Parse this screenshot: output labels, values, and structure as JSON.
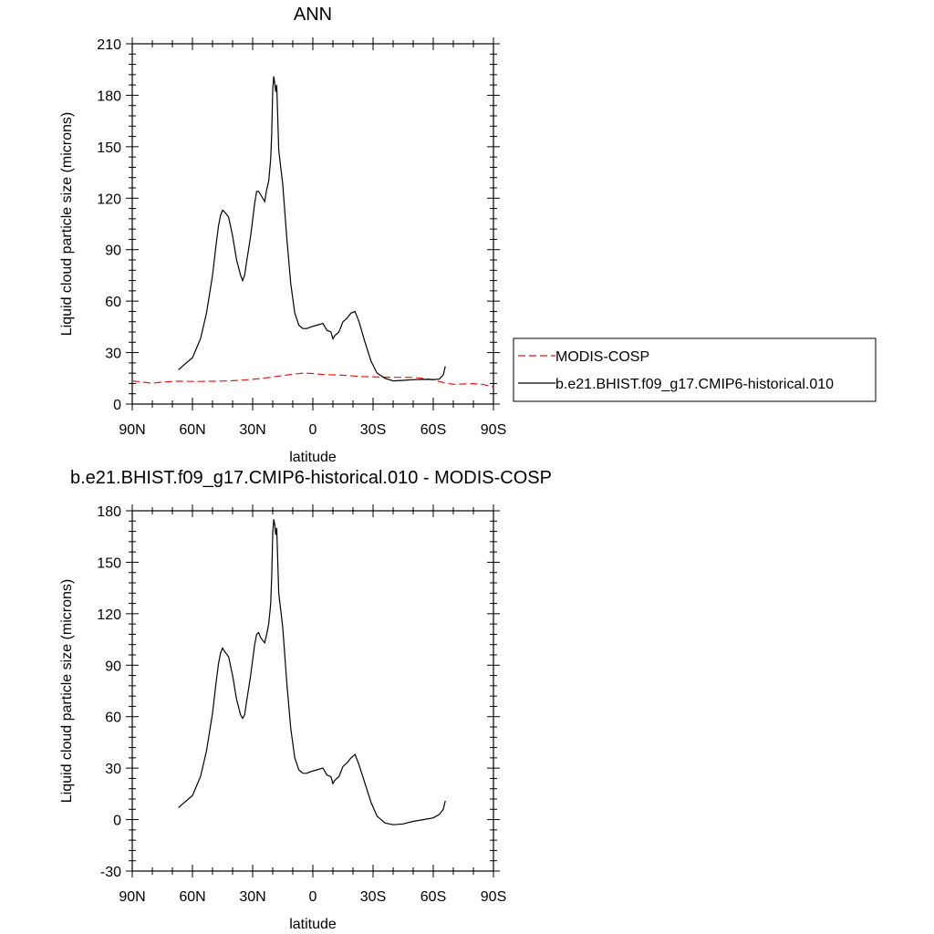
{
  "chart_data": [
    {
      "type": "line",
      "title": "ANN",
      "xlabel": "latitude",
      "ylabel": "Liquid cloud particle size (microns)",
      "xlim": [
        90,
        -90
      ],
      "ylim": [
        0,
        210
      ],
      "yticks": [
        0,
        30,
        60,
        90,
        120,
        150,
        180,
        210
      ],
      "xticks": [
        90,
        60,
        30,
        0,
        -30,
        -60,
        -90
      ],
      "xticklabels": [
        "90N",
        "60N",
        "30N",
        "0",
        "30S",
        "60S",
        "90S"
      ],
      "grid": false,
      "legend": "right",
      "series": [
        {
          "name": "MODIS-COSP",
          "color": "#e41a1c",
          "dash": "dashed",
          "x": [
            90,
            85,
            80,
            75,
            70,
            65,
            60,
            55,
            50,
            45,
            40,
            35,
            30,
            25,
            20,
            15,
            10,
            5,
            0,
            -5,
            -10,
            -15,
            -20,
            -25,
            -30,
            -35,
            -40,
            -45,
            -50,
            -55,
            -60,
            -65,
            -70,
            -75,
            -80,
            -85,
            -90
          ],
          "y": [
            13.5,
            12.8,
            12.2,
            12.8,
            13.2,
            13.3,
            13.2,
            13.2,
            13.3,
            13.4,
            13.6,
            14.0,
            14.4,
            15.0,
            15.8,
            16.6,
            17.4,
            18.0,
            17.8,
            17.2,
            17.0,
            16.8,
            16.4,
            16.0,
            15.9,
            15.7,
            15.6,
            15.6,
            15.5,
            15.0,
            14.2,
            12.5,
            11.5,
            11.7,
            11.9,
            11.4,
            10.0
          ]
        },
        {
          "name": "b.e21.BHIST.f09_g17.CMIP6-historical.010",
          "color": "#000000",
          "dash": "solid",
          "x": [
            67,
            64,
            60,
            56,
            53,
            50,
            48,
            47,
            46,
            45,
            44,
            42,
            40,
            38,
            36,
            35,
            34,
            33,
            31,
            29,
            28,
            27,
            26,
            24,
            23,
            22,
            21,
            20.5,
            20,
            19.5,
            19,
            18.5,
            18,
            17,
            15,
            13,
            11,
            9,
            7,
            5,
            3,
            1,
            -2,
            -5,
            -7,
            -9,
            -10,
            -11,
            -13,
            -15,
            -17,
            -19,
            -21,
            -23,
            -26,
            -29,
            -32,
            -36,
            -40,
            -45,
            -50,
            -55,
            -60,
            -63,
            -65,
            -66
          ],
          "y": [
            20,
            23,
            27,
            38,
            53,
            75,
            95,
            104,
            110,
            113,
            112,
            109,
            98,
            84,
            75,
            72,
            75,
            83,
            98,
            117,
            124,
            124,
            122,
            118,
            125,
            130,
            143,
            158,
            183,
            191,
            187,
            182,
            186,
            148,
            128,
            97,
            70,
            53,
            46,
            44,
            44,
            45,
            46,
            47,
            43,
            42,
            38,
            40,
            42,
            48,
            50,
            53,
            54,
            48,
            36,
            25,
            18,
            15,
            13.5,
            13.8,
            14.2,
            14.4,
            14.3,
            14.5,
            17,
            22
          ]
        }
      ]
    },
    {
      "type": "line",
      "title": "b.e21.BHIST.f09_g17.CMIP6-historical.010 - MODIS-COSP",
      "xlabel": "latitude",
      "ylabel": "Liquid cloud particle size (microns)",
      "xlim": [
        90,
        -90
      ],
      "ylim": [
        -30,
        180
      ],
      "yticks": [
        -30,
        0,
        30,
        60,
        90,
        120,
        150,
        180
      ],
      "xticks": [
        90,
        60,
        30,
        0,
        -30,
        -60,
        -90
      ],
      "xticklabels": [
        "90N",
        "60N",
        "30N",
        "0",
        "30S",
        "60S",
        "90S"
      ],
      "grid": false,
      "series": [
        {
          "color": "#000000",
          "dash": "solid",
          "x": [
            67,
            64,
            60,
            56,
            53,
            50,
            48,
            47,
            46,
            45,
            44,
            42,
            40,
            38,
            36,
            35,
            34,
            33,
            31,
            29,
            28,
            27,
            26,
            24,
            23,
            22,
            21,
            20.5,
            20,
            19.5,
            19,
            18.5,
            18,
            17,
            15,
            13,
            11,
            9,
            7,
            5,
            3,
            1,
            -2,
            -5,
            -7,
            -9,
            -10,
            -11,
            -13,
            -15,
            -17,
            -19,
            -21,
            -23,
            -26,
            -29,
            -32,
            -36,
            -40,
            -45,
            -50,
            -55,
            -60,
            -63,
            -65,
            -66
          ],
          "y": [
            7,
            10,
            14,
            25,
            40,
            62,
            82,
            91,
            97,
            100,
            98,
            95,
            84,
            70,
            61,
            59,
            61,
            69,
            84,
            102,
            108,
            109,
            106,
            103,
            108,
            114,
            126,
            142,
            167,
            175,
            172,
            166,
            170,
            132,
            112,
            80,
            53,
            36,
            29,
            27,
            27,
            28,
            29,
            30,
            26,
            25,
            21,
            23,
            25,
            31,
            33,
            36,
            38,
            32,
            21,
            10,
            2,
            -2,
            -3,
            -2.5,
            -1,
            0,
            1,
            3,
            6,
            11
          ]
        }
      ]
    }
  ]
}
